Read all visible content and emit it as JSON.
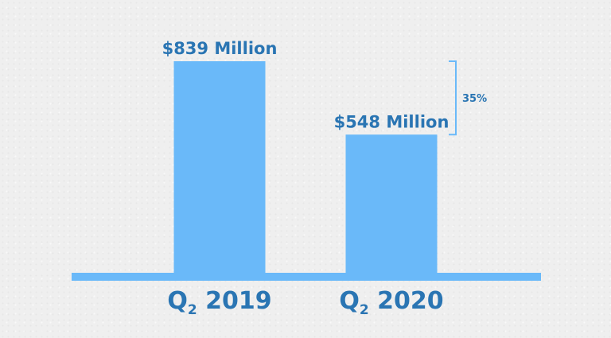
{
  "chart_data": {
    "type": "bar",
    "categories": [
      {
        "main": "Q",
        "sub": "2",
        "year": "2019"
      },
      {
        "main": "Q",
        "sub": "2",
        "year": "2020"
      }
    ],
    "values": [
      839,
      548
    ],
    "value_labels": [
      "$839 Million",
      "$548 Million"
    ],
    "annotation": {
      "label": "35%",
      "from_category": 0,
      "to_category": 1
    },
    "ylim": [
      0,
      900
    ],
    "grid": false,
    "legend": "none",
    "colors": {
      "bar": "#6ab9f9",
      "text": "#2a75b3",
      "axis": "#6ab9f9"
    }
  }
}
